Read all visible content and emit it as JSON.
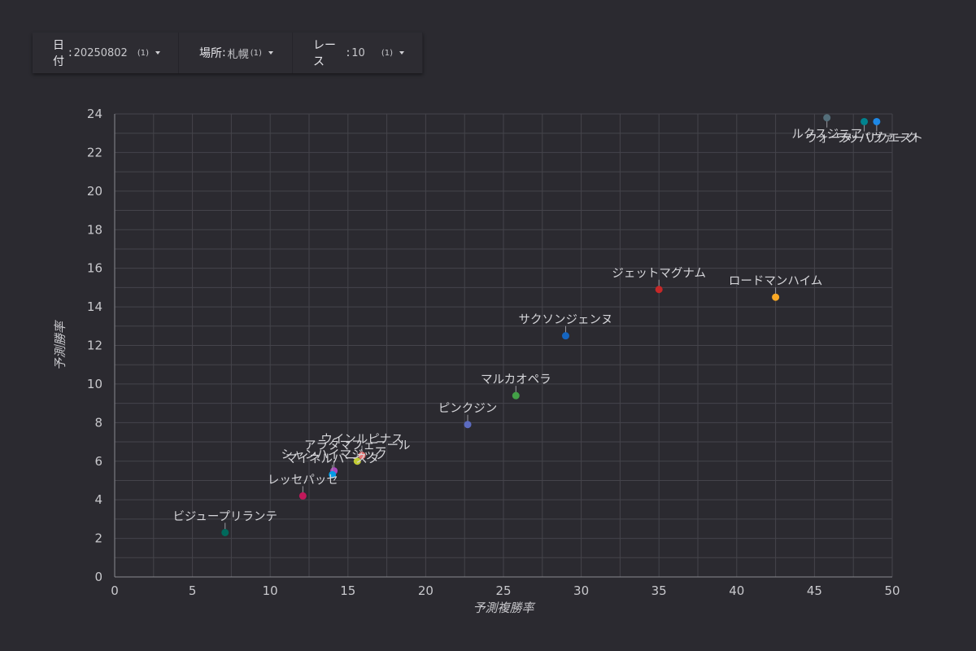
{
  "filters": [
    {
      "label": "日付",
      "value": "20250802",
      "count": "(1)",
      "icon": "dropdown-caret-icon"
    },
    {
      "label": "場所",
      "value": "札幌",
      "count": "(1)",
      "icon": "dropdown-caret-icon"
    },
    {
      "label": "レース",
      "value": "10",
      "count": "(1)",
      "icon": "dropdown-caret-icon"
    }
  ],
  "chart_data": {
    "type": "scatter",
    "xlabel": "予測複勝率",
    "ylabel": "予測勝率",
    "xlim": [
      0,
      50
    ],
    "ylim": [
      0,
      24
    ],
    "xticks": [
      0,
      5,
      10,
      15,
      20,
      25,
      30,
      35,
      40,
      45,
      50
    ],
    "yticks": [
      0,
      2,
      4,
      6,
      8,
      10,
      12,
      14,
      16,
      18,
      20,
      22,
      24
    ],
    "grid": true,
    "points": [
      {
        "label": "ルクスジニア",
        "x": 45.8,
        "y": 23.8,
        "color": "#546e7a"
      },
      {
        "label": "ウォーターリクエスト",
        "x": 48.2,
        "y": 23.6,
        "color": "#00838f"
      },
      {
        "label": "ワッパヴァーク",
        "x": 49.0,
        "y": 23.6,
        "color": "#1e88e5"
      },
      {
        "label": "ジェットマグナム",
        "x": 35.0,
        "y": 14.9,
        "color": "#c62828"
      },
      {
        "label": "ロードマンハイム",
        "x": 42.5,
        "y": 14.5,
        "color": "#f9a825"
      },
      {
        "label": "サクソンジェンヌ",
        "x": 29.0,
        "y": 12.5,
        "color": "#1565c0"
      },
      {
        "label": "マルカオペラ",
        "x": 25.8,
        "y": 9.4,
        "color": "#43a047"
      },
      {
        "label": "ピンクジン",
        "x": 22.7,
        "y": 7.9,
        "color": "#5c6bc0"
      },
      {
        "label": "ウインルピナス",
        "x": 15.9,
        "y": 6.3,
        "color": "#e57373"
      },
      {
        "label": "アラタマフェニール",
        "x": 15.6,
        "y": 6.0,
        "color": "#c0ca33"
      },
      {
        "label": "シャンハイマジック",
        "x": 14.1,
        "y": 5.5,
        "color": "#ab47bc"
      },
      {
        "label": "マイネルバースタ",
        "x": 14.0,
        "y": 5.3,
        "color": "#039be5"
      },
      {
        "label": "レッセパッセ",
        "x": 12.1,
        "y": 4.2,
        "color": "#c2185b"
      },
      {
        "label": "ビジュープリランテ",
        "x": 7.1,
        "y": 2.3,
        "color": "#00695c"
      }
    ]
  }
}
